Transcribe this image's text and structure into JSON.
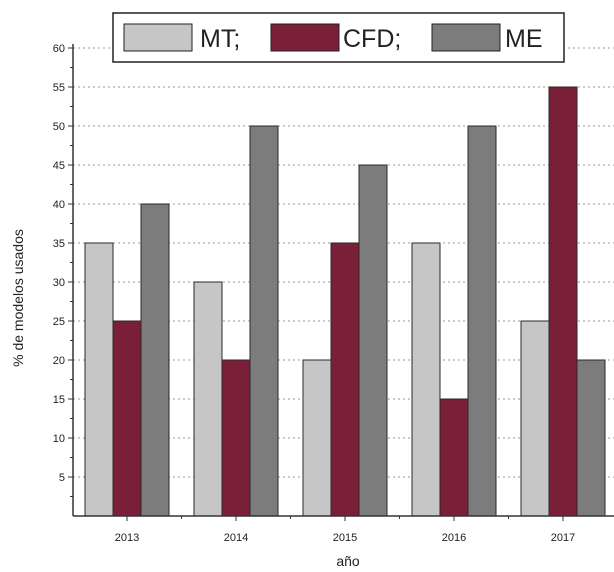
{
  "chart_data": {
    "type": "bar",
    "categories": [
      "2013",
      "2014",
      "2015",
      "2016",
      "2017"
    ],
    "series": [
      {
        "name": "MT",
        "legend_label": "MT;",
        "color": "#c6c6c6",
        "values": [
          35,
          30,
          20,
          35,
          25
        ]
      },
      {
        "name": "CFD",
        "legend_label": "CFD;",
        "color": "#7a1f38",
        "values": [
          25,
          20,
          35,
          15,
          55
        ]
      },
      {
        "name": "ME",
        "legend_label": "ME",
        "color": "#7c7c7c",
        "values": [
          40,
          50,
          45,
          50,
          20
        ]
      }
    ],
    "xlabel": "año",
    "ylabel": "% de modelos usados",
    "ylim": [
      0,
      60
    ],
    "yticks": [
      5,
      10,
      15,
      20,
      25,
      30,
      35,
      40,
      45,
      50,
      55,
      60
    ],
    "grid": true,
    "grid_style": "dotted",
    "legend_position": "top-center"
  }
}
